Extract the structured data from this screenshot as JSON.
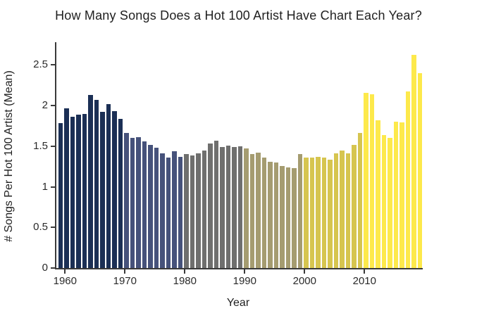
{
  "title": "How Many Songs Does a Hot 100 Artist Have Chart Each Year?",
  "chart_data": {
    "type": "bar",
    "title": "How Many Songs Does a Hot 100 Artist Have Chart Each Year?",
    "xlabel": "Year",
    "ylabel": "# Songs Per Hot 100 Artist (Mean)",
    "grid": false,
    "legend": null,
    "ylim": [
      0,
      2.78
    ],
    "x": [
      1959,
      1960,
      1961,
      1962,
      1963,
      1964,
      1965,
      1966,
      1967,
      1968,
      1969,
      1970,
      1971,
      1972,
      1973,
      1974,
      1975,
      1976,
      1977,
      1978,
      1979,
      1980,
      1981,
      1982,
      1983,
      1984,
      1985,
      1986,
      1987,
      1988,
      1989,
      1990,
      1991,
      1992,
      1993,
      1994,
      1995,
      1996,
      1997,
      1998,
      1999,
      2000,
      2001,
      2002,
      2003,
      2004,
      2005,
      2006,
      2007,
      2008,
      2009,
      2010,
      2011,
      2012,
      2013,
      2014,
      2015,
      2016,
      2017,
      2018,
      2019
    ],
    "values": [
      1.78,
      1.97,
      1.86,
      1.89,
      1.9,
      2.13,
      2.07,
      1.92,
      2.02,
      1.93,
      1.84,
      1.66,
      1.6,
      1.61,
      1.56,
      1.52,
      1.48,
      1.41,
      1.36,
      1.44,
      1.37,
      1.4,
      1.39,
      1.41,
      1.45,
      1.53,
      1.57,
      1.49,
      1.51,
      1.49,
      1.5,
      1.47,
      1.4,
      1.42,
      1.36,
      1.31,
      1.3,
      1.26,
      1.24,
      1.23,
      1.4,
      1.36,
      1.36,
      1.37,
      1.36,
      1.33,
      1.41,
      1.45,
      1.41,
      1.52,
      1.66,
      2.16,
      2.14,
      1.82,
      1.64,
      1.6,
      1.8,
      1.79,
      2.17,
      2.62,
      2.4
    ],
    "yticks": [
      "0",
      "0.5",
      "1",
      "1.5",
      "2",
      "2.5"
    ],
    "ytick_values": [
      0,
      0.5,
      1,
      1.5,
      2,
      2.5
    ],
    "xticks": [
      "1960",
      "1970",
      "1980",
      "1990",
      "2000",
      "2010"
    ],
    "xtick_values": [
      1960,
      1970,
      1980,
      1990,
      2000,
      2010
    ],
    "decade_colors": [
      {
        "from": 1959,
        "to": 1969,
        "color": "#1B2F55"
      },
      {
        "from": 1970,
        "to": 1979,
        "color": "#46527B"
      },
      {
        "from": 1980,
        "to": 1989,
        "color": "#6F6F6E"
      },
      {
        "from": 1990,
        "to": 1999,
        "color": "#A59C70"
      },
      {
        "from": 2000,
        "to": 2009,
        "color": "#D6C54F"
      },
      {
        "from": 2010,
        "to": 2019,
        "color": "#FDE94B"
      }
    ],
    "axis_color": "#3a3a3a",
    "background_color": "#ffffff"
  }
}
